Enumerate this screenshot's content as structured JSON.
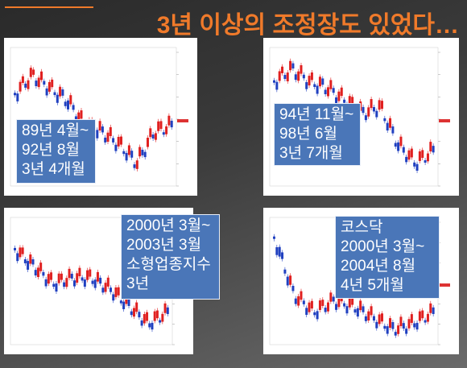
{
  "title": "3년 이상의 조정장도 있었다…",
  "panels": [
    {
      "lines": [
        "89년 4월~",
        "92년 8월",
        "3년 4개월"
      ]
    },
    {
      "lines": [
        "94년 11월~",
        "98년 6월",
        "3년 7개월"
      ]
    },
    {
      "lines": [
        "2000년 3월~",
        "2003년 3월",
        "소형업종지수",
        "3년"
      ]
    },
    {
      "lines": [
        "코스닥",
        "2000년 3월~",
        "2004년 8월",
        "4년 5개월"
      ]
    }
  ]
}
